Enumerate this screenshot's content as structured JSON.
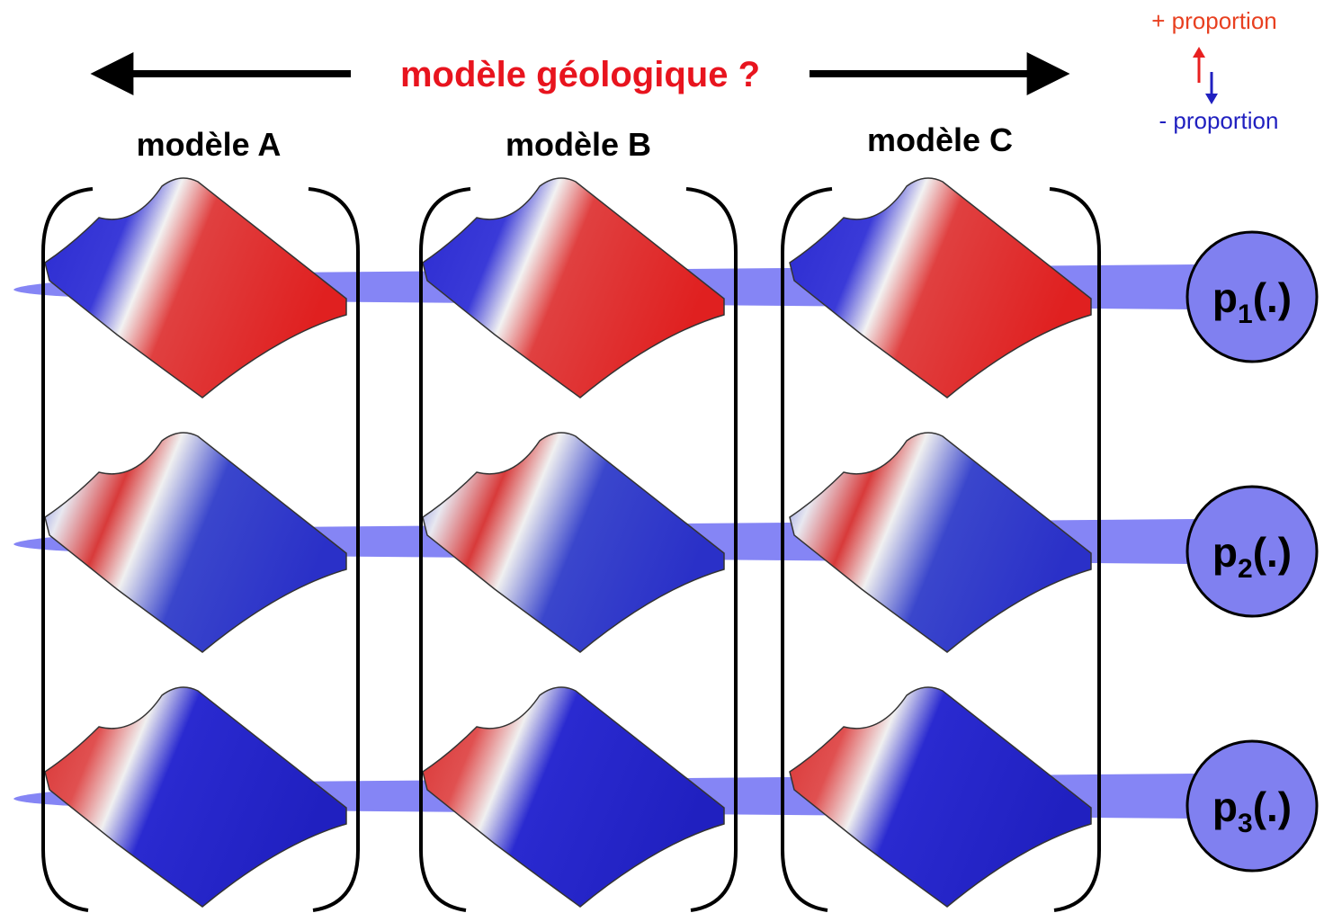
{
  "header": {
    "title": "modèle géologique ?"
  },
  "legend": {
    "plus": "+ proportion",
    "minus": "- proportion"
  },
  "models": [
    "modèle A",
    "modèle B",
    "modèle C"
  ],
  "proportions": [
    {
      "base": "p",
      "sub": "1",
      "rest": "(.)"
    },
    {
      "base": "p",
      "sub": "2",
      "rest": "(.)"
    },
    {
      "base": "p",
      "sub": "3",
      "rest": "(.)"
    }
  ]
}
